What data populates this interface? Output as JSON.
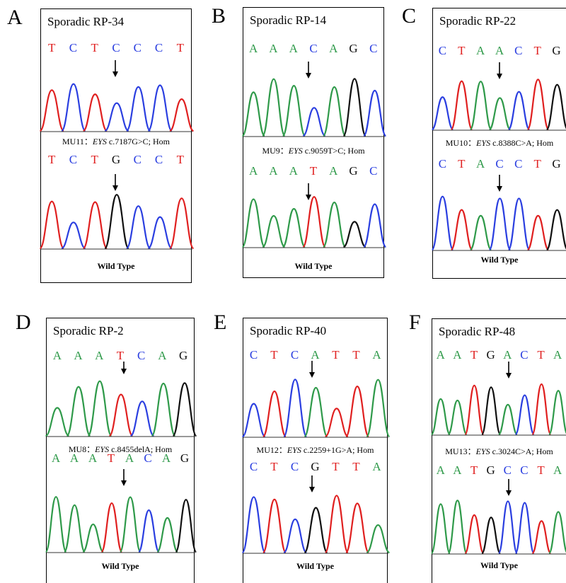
{
  "colors": {
    "A": "#2f9a4a",
    "T": "#e02020",
    "C": "#2b3fe0",
    "G": "#111111"
  },
  "panels": [
    {
      "letter": "A",
      "title": "Sporadic RP-34",
      "top_seq": [
        "T",
        "C",
        "T",
        "C",
        "C",
        "C",
        "T"
      ],
      "caption": {
        "id": "MU11：",
        "gene": "EYS",
        "change": " c.7187G>C; Hom"
      },
      "bottom_seq": [
        "T",
        "C",
        "T",
        "G",
        "C",
        "C",
        "T"
      ],
      "wild_type": "Wild Type"
    },
    {
      "letter": "B",
      "title": "Sporadic RP-14",
      "top_seq": [
        "A",
        "A",
        "A",
        "C",
        "A",
        "G",
        "C"
      ],
      "caption": {
        "id": "MU9：",
        "gene": "EYS",
        "change": " c.9059T>C; Hom"
      },
      "bottom_seq": [
        "A",
        "A",
        "A",
        "T",
        "A",
        "G",
        "C"
      ],
      "wild_type": "Wild Type"
    },
    {
      "letter": "C",
      "title": "Sporadic RP-22",
      "top_seq": [
        "C",
        "T",
        "A",
        "A",
        "C",
        "T",
        "G"
      ],
      "caption": {
        "id": "MU10：",
        "gene": "EYS",
        "change": " c.8388C>A; Hom"
      },
      "bottom_seq": [
        "C",
        "T",
        "A",
        "C",
        "C",
        "T",
        "G"
      ],
      "wild_type": "Wild Type"
    },
    {
      "letter": "D",
      "title": "Sporadic RP-2",
      "top_seq": [
        "A",
        "A",
        "A",
        "T",
        "C",
        "A",
        "G"
      ],
      "caption": {
        "id": "MU8：",
        "gene": "EYS",
        "change": " c.8455delA; Hom"
      },
      "bottom_seq": [
        "A",
        "A",
        "A",
        "T",
        "A",
        "C",
        "A",
        "G"
      ],
      "wild_type": "Wild Type"
    },
    {
      "letter": "E",
      "title": "Sporadic RP-40",
      "top_seq": [
        "C",
        "T",
        "C",
        "A",
        "T",
        "T",
        "A"
      ],
      "caption": {
        "id": "MU12：",
        "gene": "EYS",
        "change": " c.2259+1G>A; Hom"
      },
      "bottom_seq": [
        "C",
        "T",
        "C",
        "G",
        "T",
        "T",
        "A"
      ],
      "wild_type": "Wild Type"
    },
    {
      "letter": "F",
      "title": "Sporadic RP-48",
      "top_seq": [
        "A",
        "A",
        "T",
        "G",
        "A",
        "C",
        "T",
        "A"
      ],
      "caption": {
        "id": "MU13：",
        "gene": "EYS",
        "change": " c.3024C>A; Hom"
      },
      "bottom_seq": [
        "A",
        "A",
        "T",
        "G",
        "C",
        "C",
        "T",
        "A"
      ],
      "wild_type": "Wild Type"
    }
  ]
}
